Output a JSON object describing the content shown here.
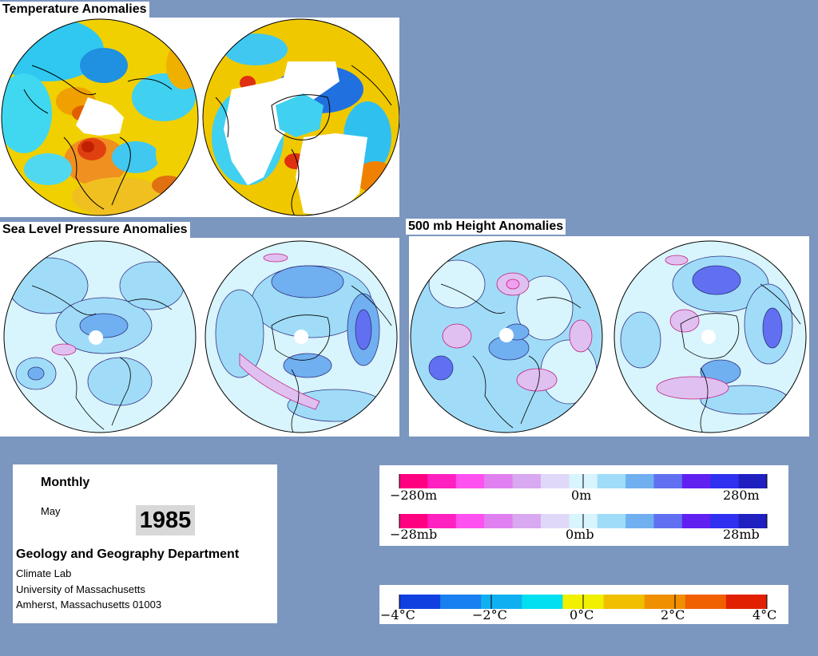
{
  "panels": {
    "temperature_title": "Temperature Anomalies",
    "slp_title": "Sea Level Pressure Anomalies",
    "height_title": "500 mb Height Anomalies"
  },
  "info": {
    "frequency": "Monthly",
    "month": "May",
    "year": "1985",
    "department": "Geology and Geography Department",
    "lab": "Climate Lab",
    "university": "University of Massachusetts",
    "address": "Amherst, Massachusetts 01003"
  },
  "legends": {
    "height": {
      "min": "−280m",
      "mid": "0m",
      "max": "280m"
    },
    "pressure": {
      "min": "−28mb",
      "mid": "0mb",
      "max": "28mb"
    },
    "temperature": {
      "t1": "−4°C",
      "t2": "−2°C",
      "t3": "0°C",
      "t4": "2°C",
      "t5": "4°C"
    }
  },
  "colors": {
    "background": "#7b96bf",
    "anomaly_scale_neg": [
      "#ff0080",
      "#ff20c0",
      "#ff50f0",
      "#e080f0",
      "#d8a8f0",
      "#e0d8f8"
    ],
    "anomaly_scale_zero": "#d8f4fc",
    "anomaly_scale_pos": [
      "#a0dcf8",
      "#70b0f0",
      "#6070f0",
      "#6020f0",
      "#3030f0",
      "#2020c0"
    ],
    "temperature_scale": [
      "#1040e0",
      "#1880f0",
      "#10b0f0",
      "#00e0f0",
      "#f0f000",
      "#f0c000",
      "#f09000",
      "#f06000",
      "#e02000"
    ]
  }
}
